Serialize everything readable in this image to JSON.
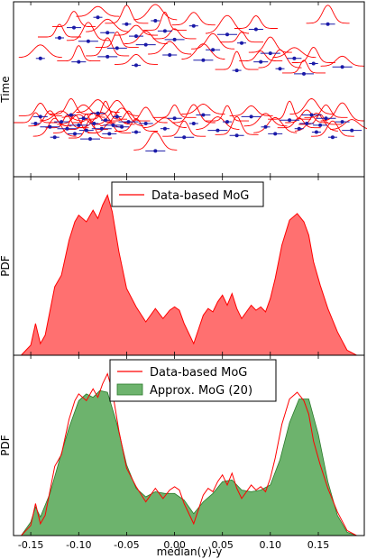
{
  "chart_data": {
    "type": "area",
    "xlabel": "median(y)-y",
    "xlim": [
      -0.168,
      0.198
    ],
    "xticks": [
      "-0.15",
      "-0.10",
      "-0.05",
      "0.00",
      "0.05",
      "0.10",
      "0.15"
    ],
    "xtick_values": [
      -0.15,
      -0.1,
      -0.05,
      0.0,
      0.05,
      0.1,
      0.15
    ],
    "colors": {
      "red_line": "#ff0000",
      "red_fill": "#ff7070",
      "green_fill": "#6db36d",
      "green_line": "#2a7a2a",
      "points": "#1a1aa8"
    },
    "panels": [
      {
        "type": "scatter",
        "ylabel": "Time",
        "description_series": "data points with horizontal error bars, each with a red gaussian bump above it",
        "points": [
          {
            "x": -0.145,
            "t": 0.3
          },
          {
            "x": -0.14,
            "t": 0.34
          },
          {
            "x": -0.13,
            "t": 0.28
          },
          {
            "x": -0.125,
            "t": 0.22
          },
          {
            "x": -0.118,
            "t": 0.31
          },
          {
            "x": -0.112,
            "t": 0.27
          },
          {
            "x": -0.108,
            "t": 0.35
          },
          {
            "x": -0.104,
            "t": 0.24
          },
          {
            "x": -0.1,
            "t": 0.29
          },
          {
            "x": -0.095,
            "t": 0.33
          },
          {
            "x": -0.092,
            "t": 0.26
          },
          {
            "x": -0.088,
            "t": 0.21
          },
          {
            "x": -0.084,
            "t": 0.3
          },
          {
            "x": -0.08,
            "t": 0.36
          },
          {
            "x": -0.076,
            "t": 0.27
          },
          {
            "x": -0.072,
            "t": 0.32
          },
          {
            "x": -0.068,
            "t": 0.24
          },
          {
            "x": -0.064,
            "t": 0.29
          },
          {
            "x": -0.06,
            "t": 0.34
          },
          {
            "x": -0.055,
            "t": 0.28
          },
          {
            "x": -0.048,
            "t": 0.31
          },
          {
            "x": -0.04,
            "t": 0.25
          },
          {
            "x": -0.03,
            "t": 0.3
          },
          {
            "x": -0.02,
            "t": 0.14
          },
          {
            "x": -0.01,
            "t": 0.27
          },
          {
            "x": 0.0,
            "t": 0.33
          },
          {
            "x": 0.01,
            "t": 0.22
          },
          {
            "x": 0.02,
            "t": 0.3
          },
          {
            "x": 0.03,
            "t": 0.35
          },
          {
            "x": 0.045,
            "t": 0.26
          },
          {
            "x": 0.055,
            "t": 0.31
          },
          {
            "x": 0.065,
            "t": 0.23
          },
          {
            "x": 0.08,
            "t": 0.34
          },
          {
            "x": 0.095,
            "t": 0.28
          },
          {
            "x": 0.105,
            "t": 0.24
          },
          {
            "x": 0.12,
            "t": 0.32
          },
          {
            "x": 0.13,
            "t": 0.27
          },
          {
            "x": 0.138,
            "t": 0.3
          },
          {
            "x": 0.143,
            "t": 0.35
          },
          {
            "x": 0.148,
            "t": 0.25
          },
          {
            "x": 0.152,
            "t": 0.29
          },
          {
            "x": 0.158,
            "t": 0.33
          },
          {
            "x": 0.165,
            "t": 0.22
          },
          {
            "x": 0.175,
            "t": 0.31
          },
          {
            "x": 0.185,
            "t": 0.26
          },
          {
            "x": -0.12,
            "t": 0.8
          },
          {
            "x": -0.105,
            "t": 0.86
          },
          {
            "x": -0.09,
            "t": 0.78
          },
          {
            "x": -0.08,
            "t": 0.92
          },
          {
            "x": -0.07,
            "t": 0.83
          },
          {
            "x": -0.06,
            "t": 0.74
          },
          {
            "x": -0.05,
            "t": 0.88
          },
          {
            "x": -0.04,
            "t": 0.81
          },
          {
            "x": -0.03,
            "t": 0.76
          },
          {
            "x": -0.02,
            "t": 0.9
          },
          {
            "x": -0.01,
            "t": 0.84
          },
          {
            "x": 0.0,
            "t": 0.79
          },
          {
            "x": 0.02,
            "t": 0.87
          },
          {
            "x": 0.04,
            "t": 0.73
          },
          {
            "x": 0.055,
            "t": 0.82
          },
          {
            "x": 0.07,
            "t": 0.77
          },
          {
            "x": 0.085,
            "t": 0.85
          },
          {
            "x": 0.1,
            "t": 0.71
          },
          {
            "x": 0.11,
            "t": 0.62
          },
          {
            "x": 0.125,
            "t": 0.68
          },
          {
            "x": 0.135,
            "t": 0.59
          },
          {
            "x": 0.145,
            "t": 0.65
          },
          {
            "x": 0.16,
            "t": 0.88
          },
          {
            "x": 0.175,
            "t": 0.63
          },
          {
            "x": -0.14,
            "t": 0.68
          },
          {
            "x": -0.1,
            "t": 0.66
          },
          {
            "x": -0.07,
            "t": 0.69
          },
          {
            "x": -0.04,
            "t": 0.64
          },
          {
            "x": -0.005,
            "t": 0.7
          },
          {
            "x": 0.03,
            "t": 0.67
          },
          {
            "x": 0.065,
            "t": 0.61
          },
          {
            "x": 0.09,
            "t": 0.66
          }
        ]
      },
      {
        "type": "area",
        "ylabel": "PDF",
        "legend": [
          "Data-based MoG"
        ],
        "legend_position": "top-center",
        "series": [
          {
            "name": "Data-based MoG",
            "x": [
              -0.16,
              -0.15,
              -0.145,
              -0.14,
              -0.135,
              -0.125,
              -0.118,
              -0.11,
              -0.104,
              -0.1,
              -0.092,
              -0.085,
              -0.08,
              -0.075,
              -0.07,
              -0.065,
              -0.058,
              -0.05,
              -0.04,
              -0.03,
              -0.02,
              -0.012,
              -0.005,
              0.0,
              0.005,
              0.01,
              0.02,
              0.03,
              0.035,
              0.04,
              0.045,
              0.05,
              0.055,
              0.06,
              0.065,
              0.07,
              0.08,
              0.085,
              0.09,
              0.095,
              0.1,
              0.105,
              0.112,
              0.12,
              0.128,
              0.135,
              0.14,
              0.145,
              0.152,
              0.16,
              0.17,
              0.18,
              0.19
            ],
            "y": [
              0.0,
              0.06,
              0.19,
              0.07,
              0.12,
              0.41,
              0.48,
              0.69,
              0.8,
              0.84,
              0.8,
              0.87,
              0.82,
              0.9,
              0.96,
              0.86,
              0.62,
              0.4,
              0.29,
              0.2,
              0.28,
              0.22,
              0.27,
              0.29,
              0.27,
              0.19,
              0.07,
              0.24,
              0.28,
              0.26,
              0.32,
              0.36,
              0.3,
              0.37,
              0.28,
              0.22,
              0.3,
              0.27,
              0.29,
              0.26,
              0.34,
              0.46,
              0.66,
              0.81,
              0.85,
              0.8,
              0.72,
              0.56,
              0.42,
              0.28,
              0.14,
              0.03,
              0.0
            ]
          }
        ]
      },
      {
        "type": "area",
        "ylabel": "PDF",
        "legend": [
          "Data-based MoG",
          "Approx. MoG (20)"
        ],
        "legend_position": "top-center",
        "series": [
          {
            "name": "Data-based MoG",
            "x": [
              -0.16,
              -0.15,
              -0.145,
              -0.14,
              -0.135,
              -0.125,
              -0.118,
              -0.11,
              -0.104,
              -0.1,
              -0.092,
              -0.085,
              -0.08,
              -0.075,
              -0.07,
              -0.065,
              -0.058,
              -0.05,
              -0.04,
              -0.03,
              -0.02,
              -0.012,
              -0.005,
              0.0,
              0.005,
              0.01,
              0.02,
              0.03,
              0.035,
              0.04,
              0.045,
              0.05,
              0.055,
              0.06,
              0.065,
              0.07,
              0.08,
              0.085,
              0.09,
              0.095,
              0.1,
              0.105,
              0.112,
              0.12,
              0.128,
              0.135,
              0.14,
              0.145,
              0.152,
              0.16,
              0.17,
              0.18,
              0.19
            ],
            "y": [
              0.0,
              0.06,
              0.19,
              0.07,
              0.12,
              0.41,
              0.48,
              0.69,
              0.8,
              0.84,
              0.8,
              0.87,
              0.82,
              0.9,
              0.96,
              0.86,
              0.62,
              0.4,
              0.29,
              0.2,
              0.28,
              0.22,
              0.27,
              0.29,
              0.27,
              0.19,
              0.07,
              0.24,
              0.28,
              0.26,
              0.32,
              0.36,
              0.3,
              0.37,
              0.28,
              0.22,
              0.3,
              0.27,
              0.29,
              0.26,
              0.34,
              0.46,
              0.66,
              0.81,
              0.85,
              0.8,
              0.72,
              0.56,
              0.42,
              0.28,
              0.14,
              0.03,
              0.0
            ]
          },
          {
            "name": "Approx. MoG (20)",
            "x": [
              -0.16,
              -0.15,
              -0.145,
              -0.14,
              -0.13,
              -0.12,
              -0.11,
              -0.1,
              -0.092,
              -0.085,
              -0.078,
              -0.07,
              -0.06,
              -0.05,
              -0.04,
              -0.03,
              -0.02,
              -0.01,
              0.0,
              0.01,
              0.02,
              0.03,
              0.04,
              0.05,
              0.06,
              0.07,
              0.08,
              0.09,
              0.1,
              0.11,
              0.12,
              0.13,
              0.14,
              0.15,
              0.16,
              0.17,
              0.18,
              0.19
            ],
            "y": [
              0.0,
              0.08,
              0.17,
              0.11,
              0.25,
              0.45,
              0.64,
              0.8,
              0.84,
              0.82,
              0.86,
              0.85,
              0.66,
              0.42,
              0.28,
              0.23,
              0.26,
              0.25,
              0.25,
              0.21,
              0.13,
              0.2,
              0.25,
              0.32,
              0.33,
              0.27,
              0.26,
              0.27,
              0.3,
              0.45,
              0.67,
              0.81,
              0.81,
              0.6,
              0.32,
              0.12,
              0.02,
              0.0
            ]
          }
        ]
      }
    ]
  }
}
